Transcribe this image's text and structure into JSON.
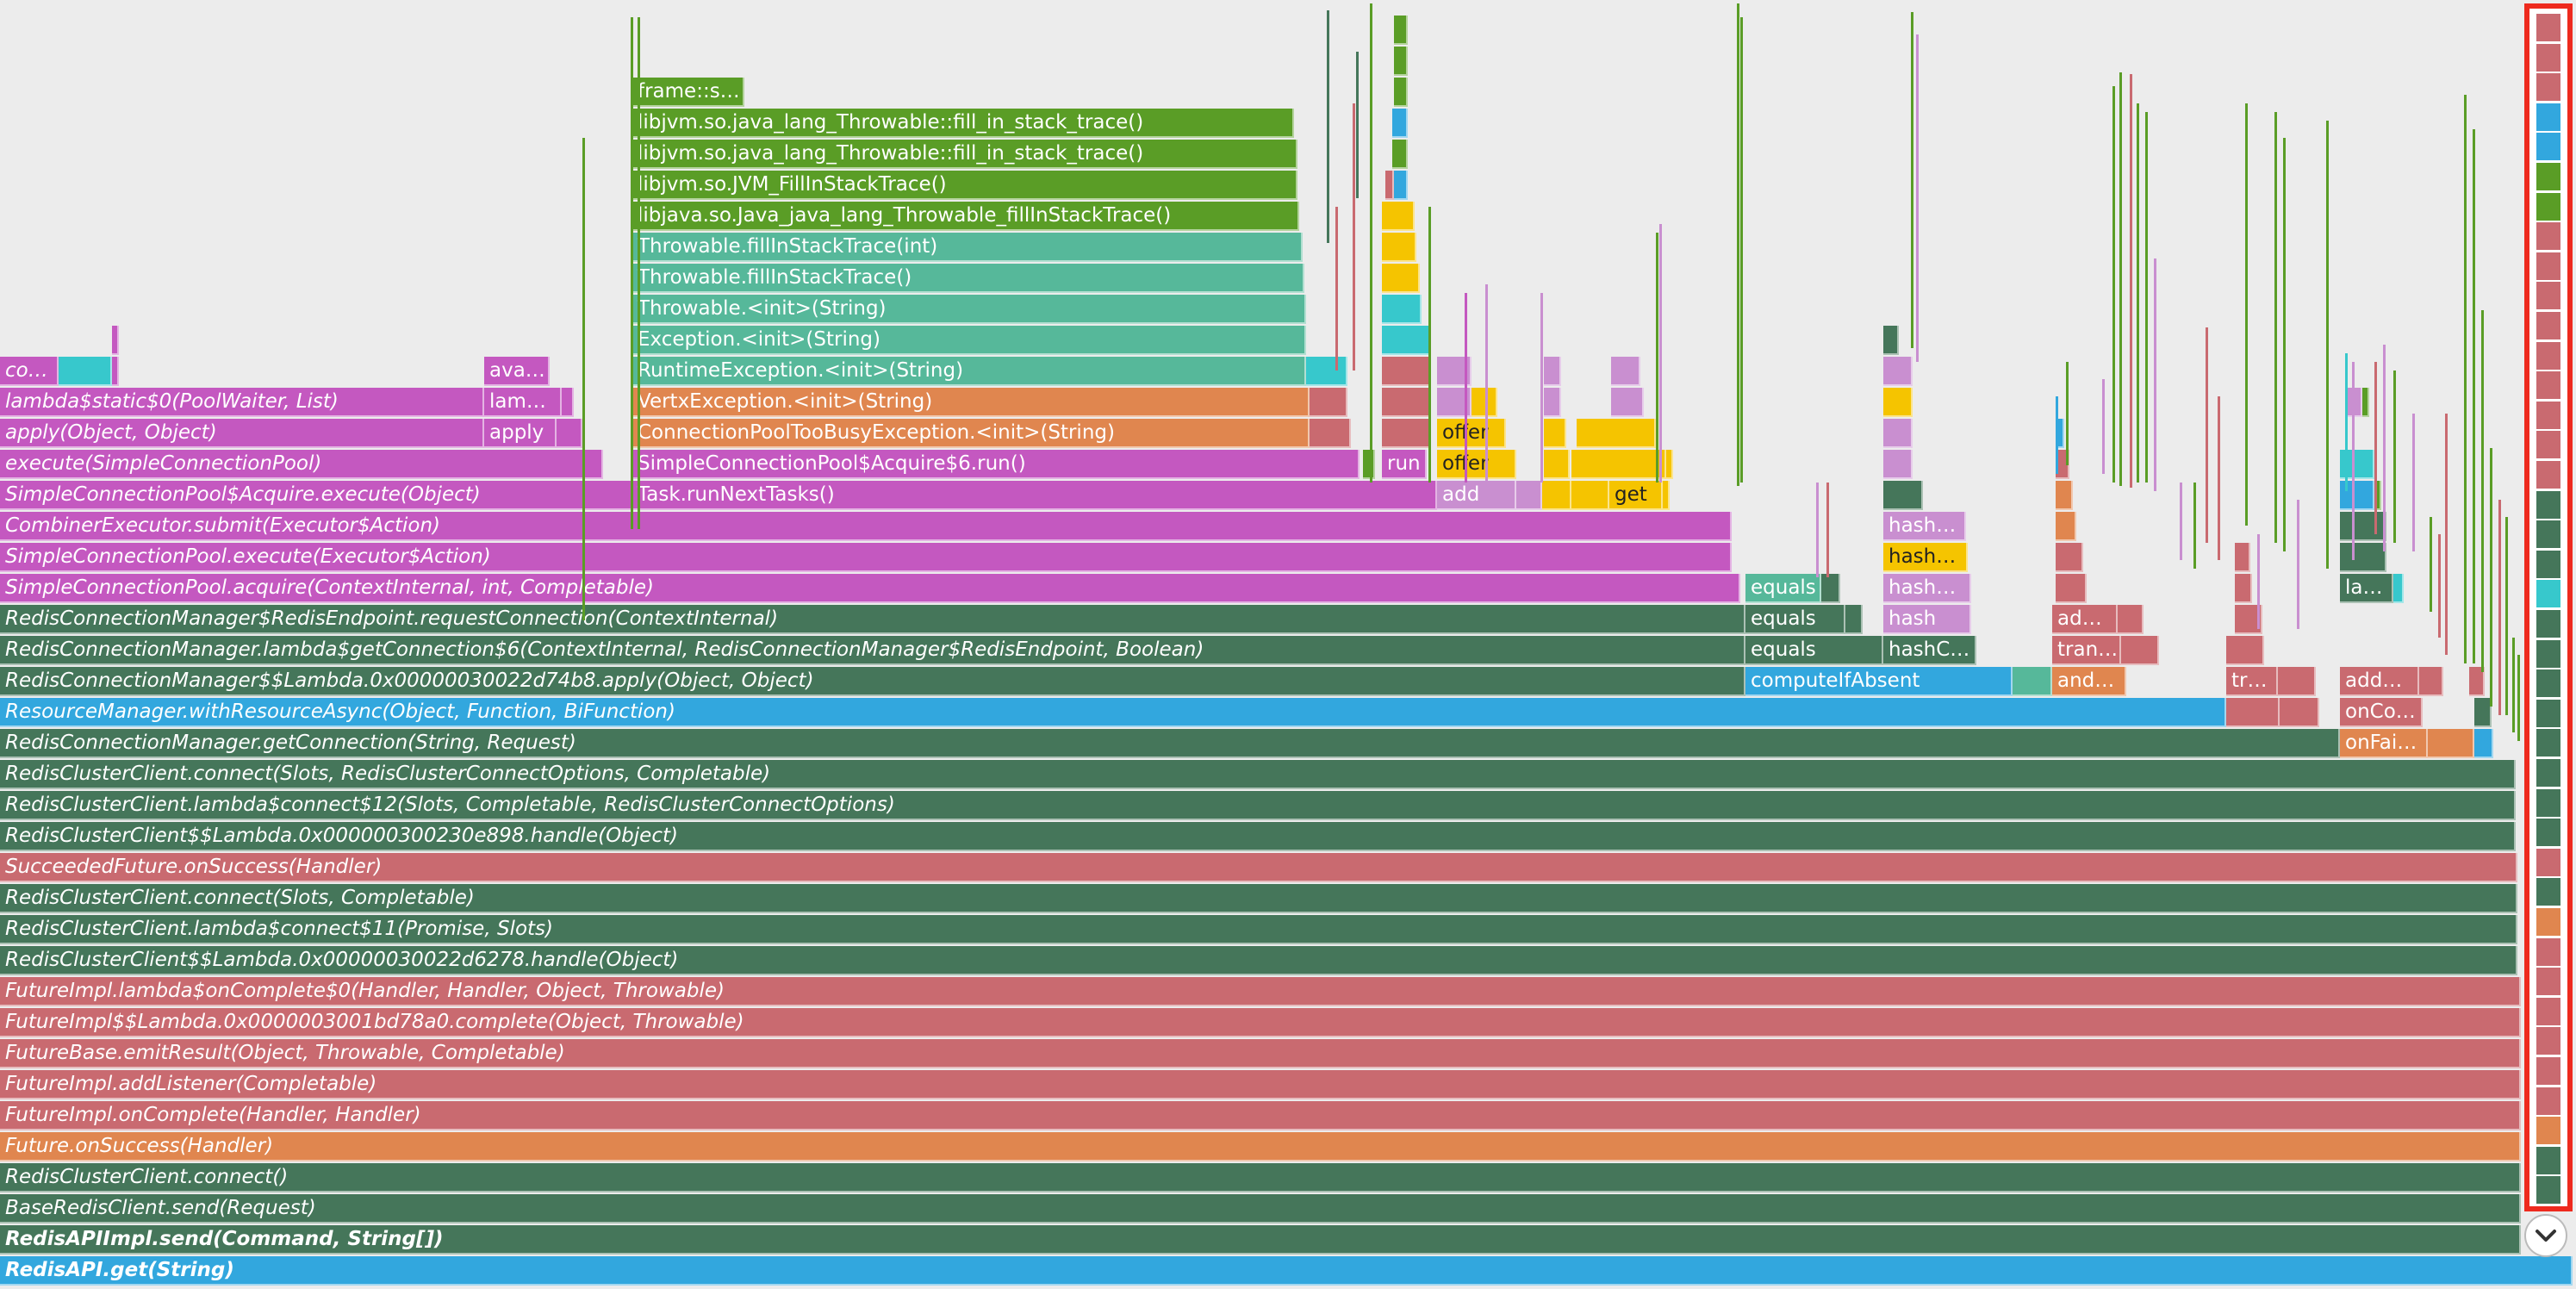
{
  "colors": {
    "dark_green": "#45765a",
    "green": "#5a9d26",
    "pink": "#c96a70",
    "magenta": "#c458c0",
    "blue": "#32a7de",
    "teal": "#56b89a",
    "orange": "#e0864f",
    "yellow": "#f5c400",
    "lilac": "#c98fd0",
    "cyan": "#37c8cc"
  },
  "frames": [
    {
      "label": "RedisAPI.get(String)",
      "color": "blue",
      "style": "italic bold"
    },
    {
      "label": "RedisAPIImpl.send(Command, String[])",
      "color": "dark_green",
      "style": "italic bold"
    },
    {
      "label": "BaseRedisClient.send(Request)",
      "color": "dark_green",
      "style": "italic"
    },
    {
      "label": "RedisClusterClient.connect()",
      "color": "dark_green",
      "style": "italic"
    },
    {
      "label": "Future.onSuccess(Handler)",
      "color": "orange",
      "style": "italic"
    },
    {
      "label": "FutureImpl.onComplete(Handler, Handler)",
      "color": "pink",
      "style": "italic"
    },
    {
      "label": "FutureImpl.addListener(Completable)",
      "color": "pink",
      "style": "italic"
    },
    {
      "label": "FutureBase.emitResult(Object, Throwable, Completable)",
      "color": "pink",
      "style": "italic"
    },
    {
      "label": "FutureImpl$$Lambda.0x0000003001bd78a0.complete(Object, Throwable)",
      "color": "pink",
      "style": "italic"
    },
    {
      "label": "FutureImpl.lambda$onComplete$0(Handler, Handler, Object, Throwable)",
      "color": "pink",
      "style": "italic"
    },
    {
      "label": "RedisClusterClient$$Lambda.0x00000030022d6278.handle(Object)",
      "color": "dark_green",
      "style": "italic"
    },
    {
      "label": "RedisClusterClient.lambda$connect$11(Promise, Slots)",
      "color": "dark_green",
      "style": "italic"
    },
    {
      "label": "RedisClusterClient.connect(Slots, Completable)",
      "color": "dark_green",
      "style": "italic"
    },
    {
      "label": "SucceededFuture.onSuccess(Handler)",
      "color": "pink",
      "style": "italic"
    },
    {
      "label": "RedisClusterClient$$Lambda.0x000000300230e898.handle(Object)",
      "color": "dark_green",
      "style": "italic"
    },
    {
      "label": "RedisClusterClient.lambda$connect$12(Slots, Completable, RedisClusterConnectOptions)",
      "color": "dark_green",
      "style": "italic"
    },
    {
      "label": "RedisClusterClient.connect(Slots, RedisClusterConnectOptions, Completable)",
      "color": "dark_green",
      "style": "italic"
    },
    {
      "label": "RedisConnectionManager.getConnection(String, Request)",
      "color": "dark_green",
      "style": "italic"
    },
    {
      "label": "ResourceManager.withResourceAsync(Object, Function, BiFunction)",
      "color": "blue",
      "style": "italic"
    },
    {
      "label": "RedisConnectionManager$$Lambda.0x00000030022d74b8.apply(Object, Object)",
      "color": "dark_green",
      "style": "italic"
    },
    {
      "label": "RedisConnectionManager.lambda$getConnection$6(ContextInternal, RedisConnectionManager$RedisEndpoint, Boolean)",
      "color": "dark_green",
      "style": "italic"
    },
    {
      "label": "RedisConnectionManager$RedisEndpoint.requestConnection(ContextInternal)",
      "color": "dark_green",
      "style": "italic"
    },
    {
      "label": "SimpleConnectionPool.acquire(ContextInternal, int, Completable)",
      "color": "magenta",
      "style": "italic"
    },
    {
      "label": "SimpleConnectionPool.execute(Executor$Action)",
      "color": "magenta",
      "style": "italic"
    },
    {
      "label": "CombinerExecutor.submit(Executor$Action)",
      "color": "magenta",
      "style": "italic"
    },
    {
      "label": "SimpleConnectionPool$Acquire.execute(Object)",
      "color": "magenta",
      "style": "italic"
    },
    {
      "label": "execute(SimpleConnectionPool)",
      "color": "magenta",
      "style": "italic"
    },
    {
      "label": "apply(Object, Object)",
      "color": "magenta",
      "style": "italic"
    },
    {
      "label": "lambda$static$0(PoolWaiter, List)",
      "color": "magenta",
      "style": "italic"
    },
    {
      "label": "co…",
      "color": "magenta",
      "style": "italic"
    },
    {
      "label": "Task.runNextTasks()",
      "color": "magenta",
      "style": ""
    },
    {
      "label": "SimpleConnectionPool$Acquire$6.run()",
      "color": "magenta",
      "style": ""
    },
    {
      "label": "ConnectionPoolTooBusyException.<init>(String)",
      "color": "orange",
      "style": ""
    },
    {
      "label": "VertxException.<init>(String)",
      "color": "orange",
      "style": ""
    },
    {
      "label": "RuntimeException.<init>(String)",
      "color": "teal",
      "style": ""
    },
    {
      "label": "Exception.<init>(String)",
      "color": "teal",
      "style": ""
    },
    {
      "label": "Throwable.<init>(String)",
      "color": "teal",
      "style": ""
    },
    {
      "label": "Throwable.fillInStackTrace()",
      "color": "teal",
      "style": ""
    },
    {
      "label": "Throwable.fillInStackTrace(int)",
      "color": "teal",
      "style": ""
    },
    {
      "label": "libjava.so.Java_java_lang_Throwable_fillInStackTrace()",
      "color": "green",
      "style": ""
    },
    {
      "label": "libjvm.so.JVM_FillInStackTrace()",
      "color": "green",
      "style": ""
    },
    {
      "label": "libjvm.so.java_lang_Throwable::fill_in_stack_trace()",
      "color": "green",
      "style": ""
    },
    {
      "label": "libjvm.so.java_lang_Throwable::fill_in_stack_trace()",
      "color": "green",
      "style": ""
    },
    {
      "label": "frame::s…",
      "color": "green",
      "style": ""
    },
    {
      "label": "ava…",
      "color": "magenta",
      "style": ""
    },
    {
      "label": "lam…",
      "color": "magenta",
      "style": ""
    },
    {
      "label": "apply",
      "color": "magenta",
      "style": ""
    },
    {
      "label": "run",
      "color": "magenta",
      "style": ""
    },
    {
      "label": "add",
      "color": "lilac",
      "style": ""
    },
    {
      "label": "offer",
      "color": "yellow",
      "style": "dark"
    },
    {
      "label": "offer",
      "color": "yellow",
      "style": "dark"
    },
    {
      "label": "get",
      "color": "yellow",
      "style": "dark"
    },
    {
      "label": "equals",
      "color": "teal",
      "style": ""
    },
    {
      "label": "equals",
      "color": "dark_green",
      "style": ""
    },
    {
      "label": "equals",
      "color": "dark_green",
      "style": ""
    },
    {
      "label": "computeIfAbsent",
      "color": "blue",
      "style": ""
    },
    {
      "label": "hashC…",
      "color": "dark_green",
      "style": ""
    },
    {
      "label": "hash",
      "color": "lilac",
      "style": ""
    },
    {
      "label": "hash…",
      "color": "lilac",
      "style": ""
    },
    {
      "label": "hash…",
      "color": "yellow",
      "style": "dark"
    },
    {
      "label": "hash…",
      "color": "lilac",
      "style": ""
    },
    {
      "label": "and…",
      "color": "orange",
      "style": ""
    },
    {
      "label": "tran…",
      "color": "pink",
      "style": ""
    },
    {
      "label": "ad…",
      "color": "pink",
      "style": ""
    },
    {
      "label": "tr…",
      "color": "pink",
      "style": ""
    },
    {
      "label": "onFai…",
      "color": "orange",
      "style": ""
    },
    {
      "label": "onCo…",
      "color": "pink",
      "style": ""
    },
    {
      "label": "add…",
      "color": "pink",
      "style": ""
    },
    {
      "label": "la…",
      "color": "dark_green",
      "style": ""
    }
  ],
  "collapse_icon": "chevron-down-icon"
}
